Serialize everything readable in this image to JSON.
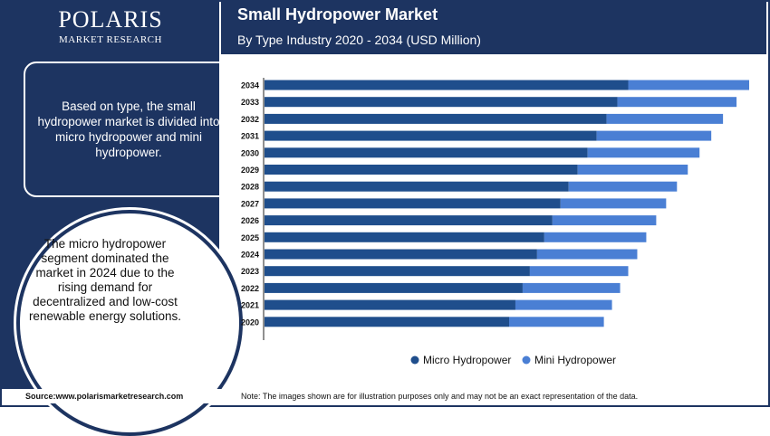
{
  "brand": {
    "name": "POLARIS",
    "tagline": "MARKET RESEARCH"
  },
  "header": {
    "title": "Small Hydropower Market",
    "subtitle": "By Type Industry 2020 - 2034 (USD Million)"
  },
  "sidebar": {
    "box_text": "Based on type, the small hydropower market is divided into micro hydropower and mini hydropower.",
    "circle_text": "The micro hydropower segment dominated the market in 2024 due to the rising demand for decentralized and low-cost renewable energy solutions."
  },
  "footer": {
    "source": "Source:www.polarismarketresearch.com",
    "note": "Note: The images shown are for illustration purposes only and may not be an exact representation of the data."
  },
  "colors": {
    "navy": "#1d3461",
    "micro": "#1f4e8c",
    "mini": "#4a7fd4"
  },
  "chart_data": {
    "type": "bar",
    "orientation": "horizontal",
    "stacked": true,
    "categories": [
      "2034",
      "2033",
      "2032",
      "2031",
      "2030",
      "2029",
      "2028",
      "2027",
      "2026",
      "2025",
      "2024",
      "2023",
      "2022",
      "2021",
      "2020"
    ],
    "series": [
      {
        "name": "Micro Hydropower",
        "values": [
          403,
          391,
          379,
          368,
          358,
          347,
          337,
          328,
          319,
          310,
          302,
          294,
          286,
          278,
          271
        ]
      },
      {
        "name": "Mini Hydropower",
        "values": [
          134,
          132,
          129,
          127,
          124,
          122,
          120,
          117,
          115,
          113,
          111,
          109,
          108,
          107,
          105
        ]
      }
    ],
    "xlim": [
      0,
      540
    ],
    "grid": false,
    "legend": "bottom"
  }
}
